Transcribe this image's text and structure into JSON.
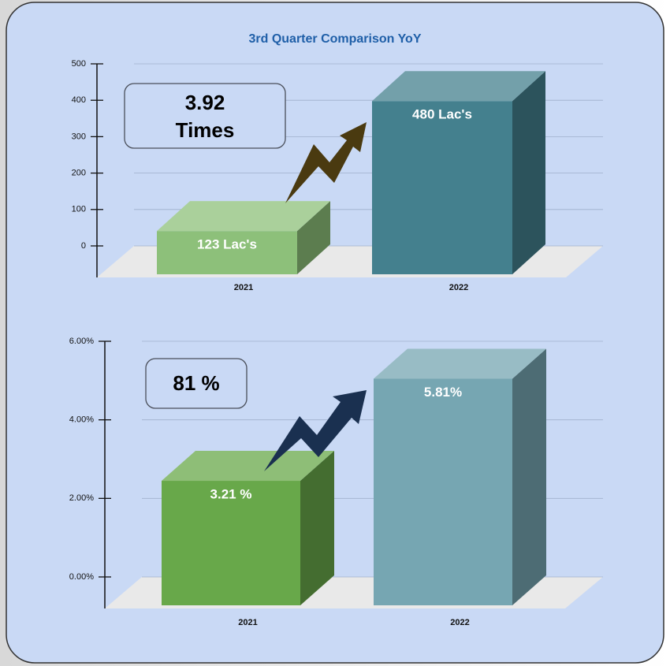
{
  "chart_data": [
    {
      "type": "bar",
      "title": "3rd Quarter Comparison YoY",
      "categories": [
        "2021",
        "2022"
      ],
      "values": [
        123,
        480
      ],
      "value_labels": [
        "123 Lac's",
        "480 Lac's"
      ],
      "colors": [
        "#8dc07a",
        "#44808e"
      ],
      "ylim": [
        0,
        500
      ],
      "yticks": [
        0,
        100,
        200,
        300,
        400,
        500
      ],
      "grid": true,
      "annotation": [
        "3.92",
        "Times"
      ]
    },
    {
      "type": "bar",
      "categories": [
        "2021",
        "2022"
      ],
      "values": [
        3.21,
        5.81
      ],
      "value_labels": [
        "3.21 %",
        "5.81%"
      ],
      "colors": [
        "#68a84a",
        "#76a6b2"
      ],
      "ylim": [
        0,
        6
      ],
      "yticks": [
        {
          "value": 0,
          "label": "0.00%"
        },
        {
          "value": 2,
          "label": "2.00%"
        },
        {
          "value": 4,
          "label": "4.00%"
        },
        {
          "value": 6,
          "label": "6.00%"
        }
      ],
      "grid": true,
      "annotation": [
        "81 %"
      ]
    }
  ]
}
